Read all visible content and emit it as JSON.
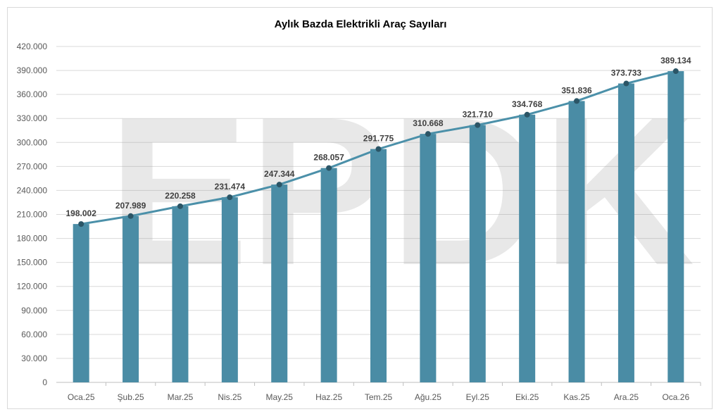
{
  "chart_data": {
    "type": "bar+line",
    "title": "Aylık Bazda Elektrikli Araç Sayıları",
    "xlabel": "",
    "ylabel": "",
    "categories": [
      "Oca.25",
      "Şub.25",
      "Mar.25",
      "Nis.25",
      "May.25",
      "Haz.25",
      "Tem.25",
      "Ağu.25",
      "Eyl.25",
      "Eki.25",
      "Kas.25",
      "Ara.25",
      "Oca.26"
    ],
    "values": [
      198002,
      207989,
      220258,
      231474,
      247344,
      268057,
      291775,
      310668,
      321710,
      334768,
      351836,
      373733,
      389134
    ],
    "data_labels": [
      "198.002",
      "207.989",
      "220.258",
      "231.474",
      "247.344",
      "268.057",
      "291.775",
      "310.668",
      "321.710",
      "334.768",
      "351.836",
      "373.733",
      "389.134"
    ],
    "ylim": [
      0,
      420000
    ],
    "yticks": [
      0,
      30000,
      60000,
      90000,
      120000,
      150000,
      180000,
      210000,
      240000,
      270000,
      300000,
      330000,
      360000,
      390000,
      420000
    ],
    "ytick_labels": [
      "0",
      "30.000",
      "60.000",
      "90.000",
      "120.000",
      "150.000",
      "180.000",
      "210.000",
      "240.000",
      "270.000",
      "300.000",
      "330.000",
      "360.000",
      "390.000",
      "420.000"
    ],
    "grid": true,
    "legend": "none",
    "colors": {
      "bar": "#4a8ca5",
      "line": "#4b90a9",
      "marker": "#2b5566",
      "grid": "#d9d9d9"
    },
    "watermark": "EPDK"
  }
}
